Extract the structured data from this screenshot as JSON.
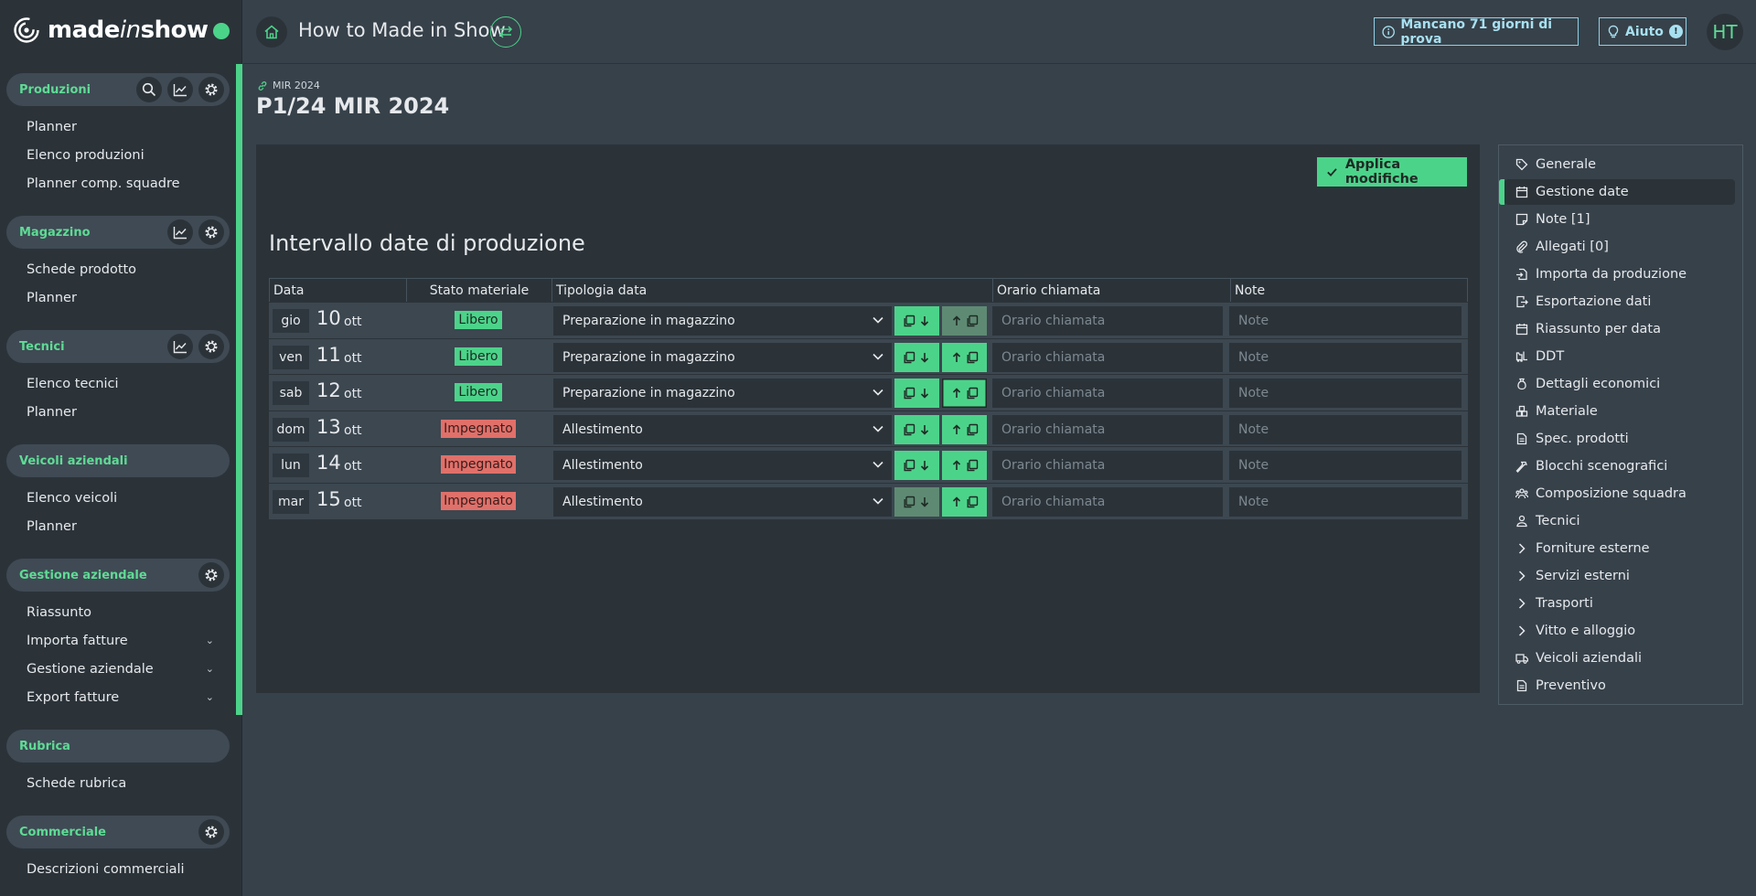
{
  "brand": {
    "logo_text_a": "made",
    "logo_text_b": "in",
    "logo_text_c": "show",
    "accent": "#4cd38a"
  },
  "sidebar": {
    "sections": [
      {
        "title": "Produzioni",
        "icons": [
          "search-icon",
          "chart-icon",
          "gear-icon"
        ],
        "items": [
          {
            "label": "Planner"
          },
          {
            "label": "Elenco produzioni"
          },
          {
            "label": "Planner comp. squadre"
          }
        ]
      },
      {
        "title": "Magazzino",
        "icons": [
          "chart-icon",
          "gear-icon"
        ],
        "items": [
          {
            "label": "Schede prodotto"
          },
          {
            "label": "Planner"
          }
        ]
      },
      {
        "title": "Tecnici",
        "icons": [
          "chart-icon",
          "gear-icon"
        ],
        "items": [
          {
            "label": "Elenco tecnici"
          },
          {
            "label": "Planner"
          }
        ]
      },
      {
        "title": "Veicoli aziendali",
        "icons": [],
        "items": [
          {
            "label": "Elenco veicoli"
          },
          {
            "label": "Planner"
          }
        ]
      },
      {
        "title": "Gestione aziendale",
        "icons": [
          "gear-icon"
        ],
        "items": [
          {
            "label": "Riassunto"
          },
          {
            "label": "Importa fatture",
            "expandable": true
          },
          {
            "label": "Gestione aziendale",
            "expandable": true
          },
          {
            "label": "Export fatture",
            "expandable": true
          }
        ]
      },
      {
        "title": "Rubrica",
        "icons": [],
        "items": [
          {
            "label": "Schede rubrica"
          }
        ]
      },
      {
        "title": "Commerciale",
        "icons": [
          "gear-icon"
        ],
        "items": [
          {
            "label": "Descrizioni commerciali"
          }
        ]
      }
    ]
  },
  "topbar": {
    "title": "How to Made in Show",
    "trial": "Mancano 71 giorni di prova",
    "help": "Aiuto",
    "help_badge": "!",
    "avatar": "HT"
  },
  "page": {
    "crumb": "MIR 2024",
    "title": "P1/24 MIR 2024",
    "apply_label": "Applica modifiche",
    "section_heading": "Intervallo date di produzione"
  },
  "table": {
    "columns": {
      "data": "Data",
      "stato": "Stato materiale",
      "tipologia": "Tipologia data",
      "orario": "Orario chiamata",
      "note": "Note"
    },
    "placeholders": {
      "orario": "Orario chiamata",
      "note": "Note"
    },
    "rows": [
      {
        "day": "gio",
        "num": "10",
        "month": "ott",
        "stato": "Libero",
        "tipologia": "Preparazione in magazzino",
        "copy_down_enabled": true,
        "copy_up_enabled": false
      },
      {
        "day": "ven",
        "num": "11",
        "month": "ott",
        "stato": "Libero",
        "tipologia": "Preparazione in magazzino",
        "copy_down_enabled": true,
        "copy_up_enabled": true
      },
      {
        "day": "sab",
        "num": "12",
        "month": "ott",
        "stato": "Libero",
        "tipologia": "Preparazione in magazzino",
        "copy_down_enabled": true,
        "copy_up_enabled": true
      },
      {
        "day": "dom",
        "num": "13",
        "month": "ott",
        "stato": "Impegnato",
        "tipologia": "Allestimento",
        "copy_down_enabled": true,
        "copy_up_enabled": true
      },
      {
        "day": "lun",
        "num": "14",
        "month": "ott",
        "stato": "Impegnato",
        "tipologia": "Allestimento",
        "copy_down_enabled": true,
        "copy_up_enabled": true
      },
      {
        "day": "mar",
        "num": "15",
        "month": "ott",
        "stato": "Impegnato",
        "tipologia": "Allestimento",
        "copy_down_enabled": false,
        "copy_up_enabled": true
      }
    ]
  },
  "right_nav": {
    "active": "Gestione date",
    "items": [
      {
        "label": "Generale",
        "icon": "tag-icon"
      },
      {
        "label": "Gestione date",
        "icon": "calendar-icon"
      },
      {
        "label": "Note [1]",
        "icon": "note-icon"
      },
      {
        "label": "Allegati [0]",
        "icon": "paperclip-icon"
      },
      {
        "label": "Importa da produzione",
        "icon": "file-import-icon"
      },
      {
        "label": "Esportazione dati",
        "icon": "file-export-icon"
      },
      {
        "label": "Riassunto per data",
        "icon": "calendar-icon"
      },
      {
        "label": "DDT",
        "icon": "forklift-icon"
      },
      {
        "label": "Dettagli economici",
        "icon": "money-bag-icon"
      },
      {
        "label": "Materiale",
        "icon": "boxes-icon"
      },
      {
        "label": "Spec. prodotti",
        "icon": "document-icon"
      },
      {
        "label": "Blocchi scenografici",
        "icon": "hammer-icon"
      },
      {
        "label": "Composizione squadra",
        "icon": "team-icon"
      },
      {
        "label": "Tecnici",
        "icon": "user-icon"
      },
      {
        "label": "Forniture esterne",
        "icon": "chevron-right-icon"
      },
      {
        "label": "Servizi esterni",
        "icon": "chevron-right-icon"
      },
      {
        "label": "Trasporti",
        "icon": "chevron-right-icon"
      },
      {
        "label": "Vitto e alloggio",
        "icon": "chevron-right-icon"
      },
      {
        "label": "Veicoli aziendali",
        "icon": "truck-icon"
      },
      {
        "label": "Preventivo",
        "icon": "document-icon"
      }
    ]
  }
}
